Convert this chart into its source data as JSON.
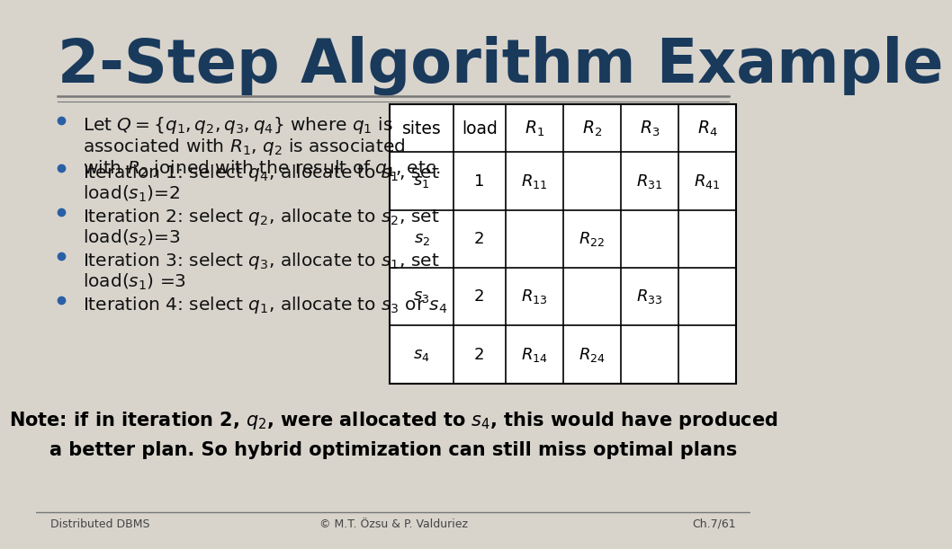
{
  "title": "2-Step Algorithm Example",
  "title_color": "#1a3a5c",
  "title_fontsize": 48,
  "bg_color": "#d8d4cc",
  "text_color": "#111111",
  "bullet_color": "#2a5fa5",
  "bullet_points": [
    [
      "Let $Q = \\{q_1, q_2, q_3, q_4\\}$ where $q_1$ is",
      "associated with $R_1$, $q_2$ is associated",
      "with $R_2$ joined with the result of $q_1$, etc."
    ],
    [
      "Iteration 1: select $q_4$, allocate to $s_1$, set",
      "load$(s_1)$=2"
    ],
    [
      "Iteration 2: select $q_2$, allocate to $s_2$, set",
      "load$(s_2)$=3"
    ],
    [
      "Iteration 3: select $q_3$, allocate to $s_1$, set",
      "load$(s_1)$ =3"
    ],
    [
      "Iteration 4: select $q_1$, allocate to $s_3$ or $s_4$"
    ]
  ],
  "table_headers": [
    "sites",
    "load",
    "$R_1$",
    "$R_2$",
    "$R_3$",
    "$R_4$"
  ],
  "table_rows": [
    [
      "$s_1$",
      "1",
      "$R_{11}$",
      "",
      "$R_{31}$",
      "$R_{41}$"
    ],
    [
      "$s_2$",
      "2",
      "",
      "$R_{22}$",
      "",
      ""
    ],
    [
      "$s_3$",
      "2",
      "$R_{13}$",
      "",
      "$R_{33}$",
      ""
    ],
    [
      "$s_4$",
      "2",
      "$R_{14}$",
      "$R_{24}$",
      "",
      ""
    ]
  ],
  "note_line1": "Note: if in iteration 2, $q_2$, were allocated to $s_4$, this would have produced",
  "note_line2": "a better plan. So hybrid optimization can still miss optimal plans",
  "footer_left": "Distributed DBMS",
  "footer_center": "© M.T. Özsu & P. Valduriez",
  "footer_right": "Ch.7/61",
  "line_color": "#777777"
}
